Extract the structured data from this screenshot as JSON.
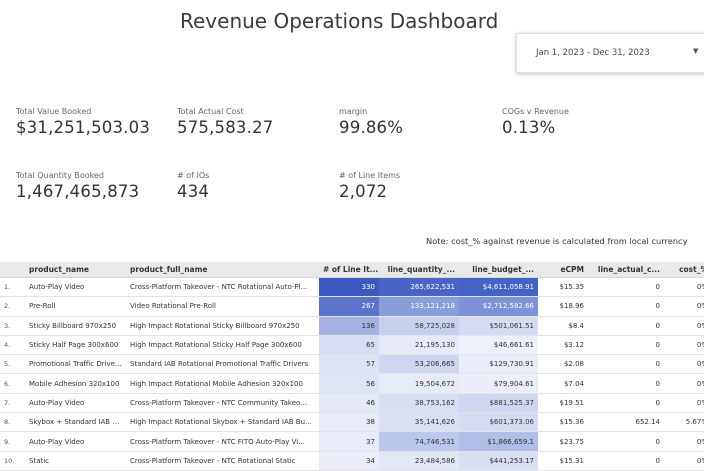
{
  "title": "Revenue Operations Dashboard",
  "date_range": "Jan 1, 2023 - Dec 31, 2023",
  "kpis": {
    "total_value_booked": {
      "label": "Total Value Booked",
      "value": "$31,251,503.03"
    },
    "total_actual_cost": {
      "label": "Total Actual Cost",
      "value": "575,583.27"
    },
    "margin": {
      "label": "margin",
      "value": "99.86%"
    },
    "cogs_v_revenue": {
      "label": "COGs v Revenue",
      "value": "0.13%"
    },
    "total_quantity_booked": {
      "label": "Total Quantity Booked",
      "value": "1,467,465,873"
    },
    "num_ios": {
      "label": "# of IOs",
      "value": "434"
    },
    "num_line_items": {
      "label": "# of Line Items",
      "value": "2,072"
    }
  },
  "note": "Note: cost_% against revenue is calculated from local currency",
  "table": {
    "headers": [
      "",
      "product_name",
      "product_full_name",
      "# of Line It...",
      "line_quantity_...",
      "line_budget_...",
      "eCPM",
      "line_actual_c...",
      "cost_%"
    ],
    "rows": [
      {
        "idx": "1.",
        "product_name": "Auto-Play Video",
        "product_full_name": "Cross-Platform Takeover - NTC Rotational Auto-Pl...",
        "line_items": "330",
        "line_quantity": "265,622,531",
        "line_budget": "$4,611,058.91",
        "ecpm": "$15.35",
        "actual_cost": "0",
        "cost_pct": "0%"
      },
      {
        "idx": "2.",
        "product_name": "Pre-Roll",
        "product_full_name": "Video Rotational Pre-Roll",
        "line_items": "267",
        "line_quantity": "133,121,218",
        "line_budget": "$2,712,582.66",
        "ecpm": "$18.96",
        "actual_cost": "0",
        "cost_pct": "0%"
      },
      {
        "idx": "3.",
        "product_name": "Sticky Billboard 970x250",
        "product_full_name": "High Impact Rotational Sticky Billboard 970x250",
        "line_items": "136",
        "line_quantity": "58,725,028",
        "line_budget": "$501,061.51",
        "ecpm": "$8.4",
        "actual_cost": "0",
        "cost_pct": "0%"
      },
      {
        "idx": "4.",
        "product_name": "Sticky Half Page 300x600",
        "product_full_name": "High Impact Rotational Sticky Half Page 300x600",
        "line_items": "65",
        "line_quantity": "21,195,130",
        "line_budget": "$46,661.61",
        "ecpm": "$3.12",
        "actual_cost": "0",
        "cost_pct": "0%"
      },
      {
        "idx": "5.",
        "product_name": "Promotional Traffic Drive...",
        "product_full_name": "Standard IAB Rotational Promotional Traffic Drivers",
        "line_items": "57",
        "line_quantity": "53,206,665",
        "line_budget": "$129,730.91",
        "ecpm": "$2.08",
        "actual_cost": "0",
        "cost_pct": "0%"
      },
      {
        "idx": "6.",
        "product_name": "Mobile Adhesion 320x100",
        "product_full_name": "High Impact Rotational Mobile Adhesion 320x100",
        "line_items": "56",
        "line_quantity": "19,504,672",
        "line_budget": "$79,904.61",
        "ecpm": "$7.04",
        "actual_cost": "0",
        "cost_pct": "0%"
      },
      {
        "idx": "7.",
        "product_name": "Auto-Play Video",
        "product_full_name": "Cross-Platform Takeover - NTC Community Takeo...",
        "line_items": "46",
        "line_quantity": "38,753,162",
        "line_budget": "$881,525.37",
        "ecpm": "$19.51",
        "actual_cost": "0",
        "cost_pct": "0%"
      },
      {
        "idx": "8.",
        "product_name": "Skybox + Standard IAB B...",
        "product_full_name": "High Impact Rotational Skybox + Standard IAB Bu...",
        "line_items": "38",
        "line_quantity": "35,141,626",
        "line_budget": "$601,373.06",
        "ecpm": "$15.36",
        "actual_cost": "652.14",
        "cost_pct": "5.67%"
      },
      {
        "idx": "9.",
        "product_name": "Auto-Play Video",
        "product_full_name": "Cross-Platform Takeover - NTC FITO Auto-Play Vi...",
        "line_items": "37",
        "line_quantity": "74,746,531",
        "line_budget": "$1,866,659.1",
        "ecpm": "$23.75",
        "actual_cost": "0",
        "cost_pct": "0%"
      },
      {
        "idx": "10.",
        "product_name": "Static",
        "product_full_name": "Cross-Platform Takeover - NTC Rotational Static",
        "line_items": "34",
        "line_quantity": "23,484,586",
        "line_budget": "$441,253.17",
        "ecpm": "$15.31",
        "actual_cost": "0",
        "cost_pct": "0%"
      }
    ],
    "heat": {
      "line_items": [
        "#3a5ac0",
        "#5a74cc",
        "#a3b2e2",
        "#d7def2",
        "#dde3f4",
        "#dee4f4",
        "#e3e8f6",
        "#e7ebf7",
        "#e7ebf7",
        "#eaedf8"
      ],
      "line_quantity": [
        "#4766c8",
        "#8a9ddb",
        "#c7d1ee",
        "#e6eaf7",
        "#ced6f0",
        "#e7ebf7",
        "#d8dff3",
        "#dae0f3",
        "#bac6ea",
        "#e2e7f6"
      ],
      "line_budget": [
        "#4363c7",
        "#7d92d7",
        "#d5dcf2",
        "#ecf0f9",
        "#e8ecf8",
        "#ebeef9",
        "#d0d8f1",
        "#d5dcf2",
        "#b0bde6",
        "#d8dff3"
      ]
    },
    "heat_text": {
      "line_items": [
        "#ffffff",
        "#ffffff",
        "#333333",
        "#333333",
        "#333333",
        "#333333",
        "#333333",
        "#333333",
        "#333333",
        "#333333"
      ],
      "line_quantity": [
        "#ffffff",
        "#ffffff",
        "#333333",
        "#333333",
        "#333333",
        "#333333",
        "#333333",
        "#333333",
        "#333333",
        "#333333"
      ],
      "line_budget": [
        "#ffffff",
        "#ffffff",
        "#333333",
        "#333333",
        "#333333",
        "#333333",
        "#333333",
        "#333333",
        "#333333",
        "#333333"
      ]
    }
  }
}
